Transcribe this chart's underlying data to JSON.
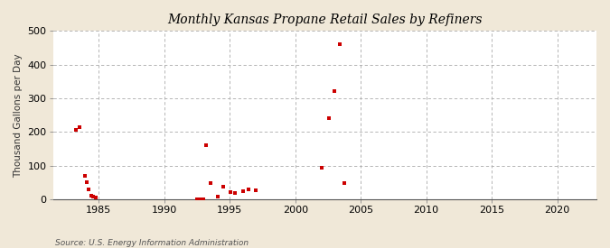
{
  "title": "Monthly Kansas Propane Retail Sales by Refiners",
  "ylabel": "Thousand Gallons per Day",
  "source": "Source: U.S. Energy Information Administration",
  "background_color": "#f0e8d8",
  "plot_background_color": "#ffffff",
  "xlim": [
    1981.5,
    2023
  ],
  "ylim": [
    0,
    500
  ],
  "xticks": [
    1985,
    1990,
    1995,
    2000,
    2005,
    2010,
    2015,
    2020
  ],
  "yticks": [
    0,
    100,
    200,
    300,
    400,
    500
  ],
  "marker_color": "#cc0000",
  "marker_size": 9,
  "data_points": [
    [
      1983.25,
      207
    ],
    [
      1983.5,
      215
    ],
    [
      1983.92,
      70
    ],
    [
      1984.08,
      50
    ],
    [
      1984.25,
      30
    ],
    [
      1984.42,
      10
    ],
    [
      1984.58,
      8
    ],
    [
      1984.75,
      5
    ],
    [
      1992.5,
      0
    ],
    [
      1992.67,
      0
    ],
    [
      1992.83,
      0
    ],
    [
      1993.0,
      0
    ],
    [
      1993.17,
      160
    ],
    [
      1993.5,
      48
    ],
    [
      1994.08,
      8
    ],
    [
      1994.5,
      38
    ],
    [
      1995.08,
      22
    ],
    [
      1995.42,
      18
    ],
    [
      1996.0,
      25
    ],
    [
      1996.42,
      30
    ],
    [
      1997.0,
      28
    ],
    [
      2002.0,
      93
    ],
    [
      2002.58,
      242
    ],
    [
      2003.0,
      322
    ],
    [
      2003.42,
      462
    ],
    [
      2003.75,
      48
    ]
  ]
}
